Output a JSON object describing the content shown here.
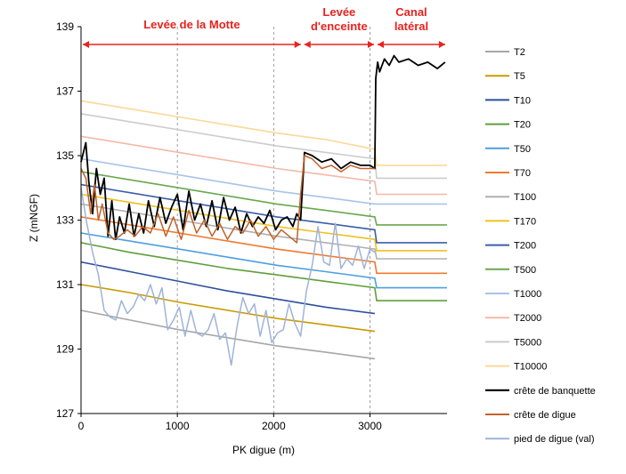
{
  "chart_data": {
    "type": "line",
    "xlabel": "PK digue (m)",
    "ylabel": "Z (mNGF)",
    "xlim": [
      0,
      3800
    ],
    "ylim": [
      127,
      139
    ],
    "x_ticks": [
      0,
      1000,
      2000,
      3000
    ],
    "y_ticks": [
      127,
      129,
      131,
      133,
      135,
      137,
      139
    ],
    "grid": "vertical dashed",
    "legend_position": "right",
    "sections": [
      {
        "label_lines": [
          "Levée de la Motte"
        ],
        "x_range": [
          0,
          2300
        ]
      },
      {
        "label_lines": [
          "Levée",
          "d'enceinte"
        ],
        "x_range": [
          2300,
          3060
        ]
      },
      {
        "label_lines": [
          "Canal",
          "latéral"
        ],
        "x_range": [
          3060,
          3800
        ]
      }
    ],
    "water_lines": [
      {
        "name": "T2",
        "color": "#a6a6a6",
        "values": [
          130.2,
          129.9,
          129.6,
          129.35,
          129.1,
          128.9,
          128.7
        ]
      },
      {
        "name": "T5",
        "color": "#c89b00",
        "values": [
          131.0,
          130.75,
          130.45,
          130.2,
          129.95,
          129.75,
          129.55
        ]
      },
      {
        "name": "T10",
        "color": "#2e4f9e",
        "values": [
          131.7,
          131.4,
          131.1,
          130.8,
          130.55,
          130.3,
          130.1
        ]
      },
      {
        "name": "T20",
        "color": "#5f9f3c",
        "values": [
          132.3,
          132.0,
          131.75,
          131.5,
          131.3,
          131.1,
          130.9,
          130.5,
          130.5
        ]
      },
      {
        "name": "T50",
        "color": "#4d9fe0",
        "values": [
          132.6,
          132.35,
          132.1,
          131.85,
          131.6,
          131.4,
          131.2,
          130.9,
          130.9
        ]
      },
      {
        "name": "T70",
        "color": "#f07a30",
        "values": [
          133.1,
          132.85,
          132.6,
          132.35,
          132.1,
          131.9,
          131.7,
          131.35,
          131.35
        ]
      },
      {
        "name": "T100",
        "color": "#b0b0b0",
        "values": [
          133.5,
          133.25,
          133.0,
          132.75,
          132.5,
          132.3,
          132.1,
          131.8,
          131.8
        ]
      },
      {
        "name": "T170",
        "color": "#f0c020",
        "values": [
          133.8,
          133.55,
          133.3,
          133.05,
          132.8,
          132.6,
          132.4,
          132.05,
          132.05
        ]
      },
      {
        "name": "T200",
        "color": "#3b5fa8",
        "values": [
          134.1,
          133.85,
          133.6,
          133.35,
          133.1,
          132.9,
          132.7,
          132.3,
          132.3
        ]
      },
      {
        "name": "T500",
        "color": "#6aa84f",
        "values": [
          134.5,
          134.25,
          134.0,
          133.75,
          133.5,
          133.3,
          133.1,
          132.85,
          132.85
        ]
      },
      {
        "name": "T1000",
        "color": "#a8c4e8",
        "values": [
          134.9,
          134.65,
          134.4,
          134.15,
          133.9,
          133.7,
          133.5,
          133.5,
          133.5
        ]
      },
      {
        "name": "T2000",
        "color": "#f4b8a8",
        "values": [
          135.6,
          135.35,
          135.1,
          134.85,
          134.6,
          134.4,
          134.2,
          133.8,
          133.8
        ]
      },
      {
        "name": "T5000",
        "color": "#cccccc",
        "values": [
          136.3,
          136.05,
          135.8,
          135.55,
          135.3,
          135.1,
          134.9,
          134.3,
          134.3
        ]
      },
      {
        "name": "T10000",
        "color": "#fbd898",
        "values": [
          136.7,
          136.45,
          136.2,
          135.95,
          135.7,
          135.5,
          135.2,
          134.7,
          134.7
        ]
      }
    ],
    "profiles": [
      {
        "name": "crête de banquette",
        "color": "#000000",
        "x": [
          0,
          50,
          80,
          120,
          160,
          200,
          240,
          280,
          320,
          360,
          400,
          450,
          500,
          550,
          600,
          650,
          700,
          760,
          820,
          880,
          940,
          1000,
          1060,
          1120,
          1180,
          1240,
          1300,
          1360,
          1420,
          1480,
          1540,
          1600,
          1660,
          1720,
          1780,
          1840,
          1900,
          1960,
          2020,
          2080,
          2140,
          2200,
          2240,
          2280,
          2320,
          2400,
          2500,
          2600,
          2700,
          2800,
          2900,
          3000,
          3050,
          3060,
          3080,
          3100,
          3150,
          3200,
          3250,
          3300,
          3400,
          3500,
          3600,
          3700,
          3780
        ],
        "y": [
          134.8,
          135.4,
          134.2,
          133.2,
          134.6,
          133.8,
          134.3,
          132.5,
          133.6,
          132.4,
          133.1,
          132.6,
          133.5,
          132.5,
          133.2,
          132.6,
          133.6,
          132.8,
          133.7,
          132.9,
          133.4,
          133.8,
          132.7,
          133.9,
          133.0,
          133.5,
          132.8,
          133.6,
          132.7,
          133.7,
          133.0,
          133.4,
          132.6,
          133.2,
          132.8,
          133.1,
          132.9,
          133.3,
          132.7,
          133.0,
          133.1,
          132.8,
          133.2,
          133.0,
          135.1,
          135.0,
          134.8,
          134.9,
          134.6,
          134.8,
          134.7,
          134.7,
          134.6,
          137.4,
          137.9,
          137.6,
          138.0,
          137.8,
          138.1,
          137.9,
          138.0,
          137.8,
          137.9,
          137.7,
          137.9
        ]
      },
      {
        "name": "crête de digue",
        "color": "#c0622a",
        "x": [
          0,
          50,
          100,
          140,
          180,
          220,
          280,
          340,
          400,
          480,
          560,
          640,
          720,
          800,
          880,
          960,
          1040,
          1120,
          1200,
          1280,
          1360,
          1440,
          1520,
          1600,
          1680,
          1760,
          1840,
          1920,
          2000,
          2080,
          2160,
          2240,
          2280,
          2320,
          2400,
          2500,
          2600,
          2700,
          2800,
          2900,
          3000,
          3050
        ],
        "y": [
          134.6,
          134.3,
          133.2,
          134.1,
          133.0,
          133.5,
          132.6,
          132.4,
          132.5,
          132.7,
          132.5,
          132.8,
          132.6,
          133.2,
          132.5,
          133.1,
          132.4,
          133.3,
          132.6,
          133.0,
          132.5,
          132.9,
          132.4,
          132.8,
          132.6,
          133.0,
          132.5,
          132.8,
          132.4,
          132.7,
          132.5,
          132.3,
          133.8,
          135.0,
          134.9,
          134.6,
          134.7,
          134.5,
          134.7,
          134.6,
          134.6,
          134.6
        ]
      },
      {
        "name": "pied de digue (val)",
        "color": "#9fb3d9",
        "x": [
          0,
          60,
          120,
          180,
          240,
          300,
          360,
          420,
          480,
          540,
          600,
          660,
          720,
          780,
          840,
          900,
          960,
          1020,
          1080,
          1140,
          1200,
          1260,
          1320,
          1380,
          1440,
          1500,
          1560,
          1620,
          1680,
          1740,
          1800,
          1860,
          1920,
          1980,
          2040,
          2100,
          2160,
          2220,
          2280,
          2340,
          2400,
          2460,
          2520,
          2580,
          2640,
          2700,
          2760,
          2820,
          2880,
          2940,
          3000,
          3050
        ],
        "y": [
          134.0,
          132.9,
          132.0,
          131.3,
          130.2,
          130.0,
          129.9,
          130.5,
          130.1,
          130.3,
          130.7,
          130.5,
          131.0,
          130.4,
          130.9,
          129.6,
          129.9,
          130.3,
          129.4,
          130.2,
          129.5,
          129.4,
          129.6,
          130.1,
          129.3,
          129.5,
          128.5,
          129.7,
          130.6,
          130.1,
          130.4,
          129.4,
          130.2,
          129.2,
          129.5,
          129.6,
          130.4,
          129.8,
          129.4,
          130.8,
          131.6,
          132.8,
          131.7,
          131.6,
          132.9,
          131.5,
          131.8,
          131.6,
          132.2,
          131.5,
          132.1,
          132.0
        ]
      }
    ]
  },
  "legend": [
    {
      "label": "T2",
      "color": "#a6a6a6"
    },
    {
      "label": "T5",
      "color": "#c89b00"
    },
    {
      "label": "T10",
      "color": "#2e4f9e"
    },
    {
      "label": "T20",
      "color": "#5f9f3c"
    },
    {
      "label": "T50",
      "color": "#4d9fe0"
    },
    {
      "label": "T70",
      "color": "#f07a30"
    },
    {
      "label": "T100",
      "color": "#b0b0b0"
    },
    {
      "label": "T170",
      "color": "#f0c020"
    },
    {
      "label": "T200",
      "color": "#3b5fa8"
    },
    {
      "label": "T500",
      "color": "#6aa84f"
    },
    {
      "label": "T1000",
      "color": "#a8c4e8"
    },
    {
      "label": "T2000",
      "color": "#f4b8a8"
    },
    {
      "label": "T5000",
      "color": "#cccccc"
    },
    {
      "label": "T10000",
      "color": "#fbd898"
    },
    {
      "label": "crête de banquette",
      "color": "#000000"
    },
    {
      "label": "crête de digue",
      "color": "#c0622a"
    },
    {
      "label": "pied de digue (val)",
      "color": "#9fb3d9"
    }
  ],
  "colors": {
    "section_accent": "#e8231e",
    "grid": "#888888"
  }
}
